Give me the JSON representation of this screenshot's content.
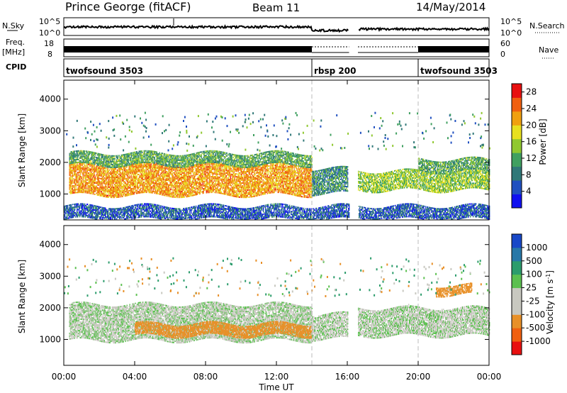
{
  "header": {
    "title": "Prince George (fitACF)",
    "beam": "Beam 11",
    "date": "14/May/2014"
  },
  "strip_labels": {
    "nsky": "N.Sky",
    "nsky_ticks": [
      "10^5",
      "10^0"
    ],
    "freq": "Freq.",
    "freq_unit": "[MHz]",
    "freq_ticks": [
      "18",
      "8"
    ],
    "cpid": "CPID",
    "nsearch": "N.Search",
    "nsearch_ticks": [
      "10^5",
      "10^0"
    ],
    "nave": "Nave",
    "nave_ticks": [
      "60",
      "0"
    ]
  },
  "cpid_segments": [
    {
      "label": "twofsound 3503",
      "start_h": 0.0
    },
    {
      "label": "rbsp 200",
      "start_h": 14.0
    },
    {
      "label": "twofsound 3503",
      "start_h": 20.0
    }
  ],
  "colors": {
    "power_scale": [
      "#1010f0",
      "#2050c0",
      "#307878",
      "#40a060",
      "#90c830",
      "#e8e020",
      "#f0a010",
      "#f06010",
      "#e81010"
    ],
    "velocity_scale": [
      "#1848c8",
      "#2878a8",
      "#2c9c6c",
      "#5cc050",
      "#c8c8c0",
      "#c8c8c0",
      "#e89028",
      "#f06010",
      "#e81010"
    ]
  },
  "chart_data": [
    {
      "type": "heatmap",
      "title": "Power",
      "xlabel": "Time UT",
      "ylabel": "Slant Range [km]",
      "x_ticks": [
        "00:00",
        "04:00",
        "08:00",
        "12:00",
        "16:00",
        "20:00",
        "00:00"
      ],
      "xlim_hours": [
        0,
        24
      ],
      "y_ticks": [
        "1000",
        "2000",
        "3000",
        "4000"
      ],
      "ylim": [
        180,
        4600
      ],
      "colorbar_label": "Power [dB]",
      "colorbar_ticks": [
        "4",
        "8",
        "12",
        "16",
        "20",
        "24",
        "28"
      ],
      "colorbar_range": [
        0,
        30
      ],
      "data_gaps_hours": [
        [
          16.1,
          16.6
        ]
      ],
      "mode_change_hours": [
        14.0,
        20.0
      ],
      "echo_bands": [
        {
          "start_h": 0.3,
          "end_h": 14.0,
          "range_low": 950,
          "range_high": 1900,
          "power": 22
        },
        {
          "start_h": 0.3,
          "end_h": 14.0,
          "range_low": 1900,
          "range_high": 2300,
          "power": 12
        },
        {
          "start_h": 14.0,
          "end_h": 16.0,
          "range_low": 1000,
          "range_high": 1800,
          "power": 10
        },
        {
          "start_h": 16.6,
          "end_h": 24.0,
          "range_low": 1100,
          "range_high": 1700,
          "power": 15
        },
        {
          "start_h": 20.0,
          "end_h": 24.0,
          "range_low": 1700,
          "range_high": 2100,
          "power": 12
        },
        {
          "start_h": 0.0,
          "end_h": 24.0,
          "range_low": 180,
          "range_high": 600,
          "power": 6
        }
      ]
    },
    {
      "type": "heatmap",
      "title": "Velocity",
      "xlabel": "Time UT",
      "ylabel": "Slant Range [km]",
      "x_ticks": [
        "00:00",
        "04:00",
        "08:00",
        "12:00",
        "16:00",
        "20:00",
        "00:00"
      ],
      "xlim_hours": [
        0,
        24
      ],
      "y_ticks": [
        "1000",
        "2000",
        "3000",
        "4000"
      ],
      "ylim": [
        180,
        4600
      ],
      "colorbar_label": "Velocity [m s^-1]",
      "colorbar_ticks": [
        "1000",
        "500",
        "100",
        "25",
        "-25",
        "-100",
        "-500",
        "-1000"
      ],
      "data_gaps_hours": [
        [
          16.1,
          16.6
        ]
      ],
      "mode_change_hours": [
        14.0,
        20.0
      ],
      "echo_bands": [
        {
          "start_h": 0.3,
          "end_h": 14.0,
          "range_low": 950,
          "range_high": 2100,
          "velocity": 0
        },
        {
          "start_h": 4.0,
          "end_h": 14.0,
          "range_low": 1100,
          "range_high": 1500,
          "velocity": -200
        },
        {
          "start_h": 14.0,
          "end_h": 16.0,
          "range_low": 1000,
          "range_high": 1800,
          "velocity": 0
        },
        {
          "start_h": 16.6,
          "end_h": 24.0,
          "range_low": 1100,
          "range_high": 2000,
          "velocity": 0
        },
        {
          "start_h": 21.0,
          "end_h": 23.0,
          "range_low": 2400,
          "range_high": 2700,
          "velocity": -300
        }
      ]
    }
  ]
}
